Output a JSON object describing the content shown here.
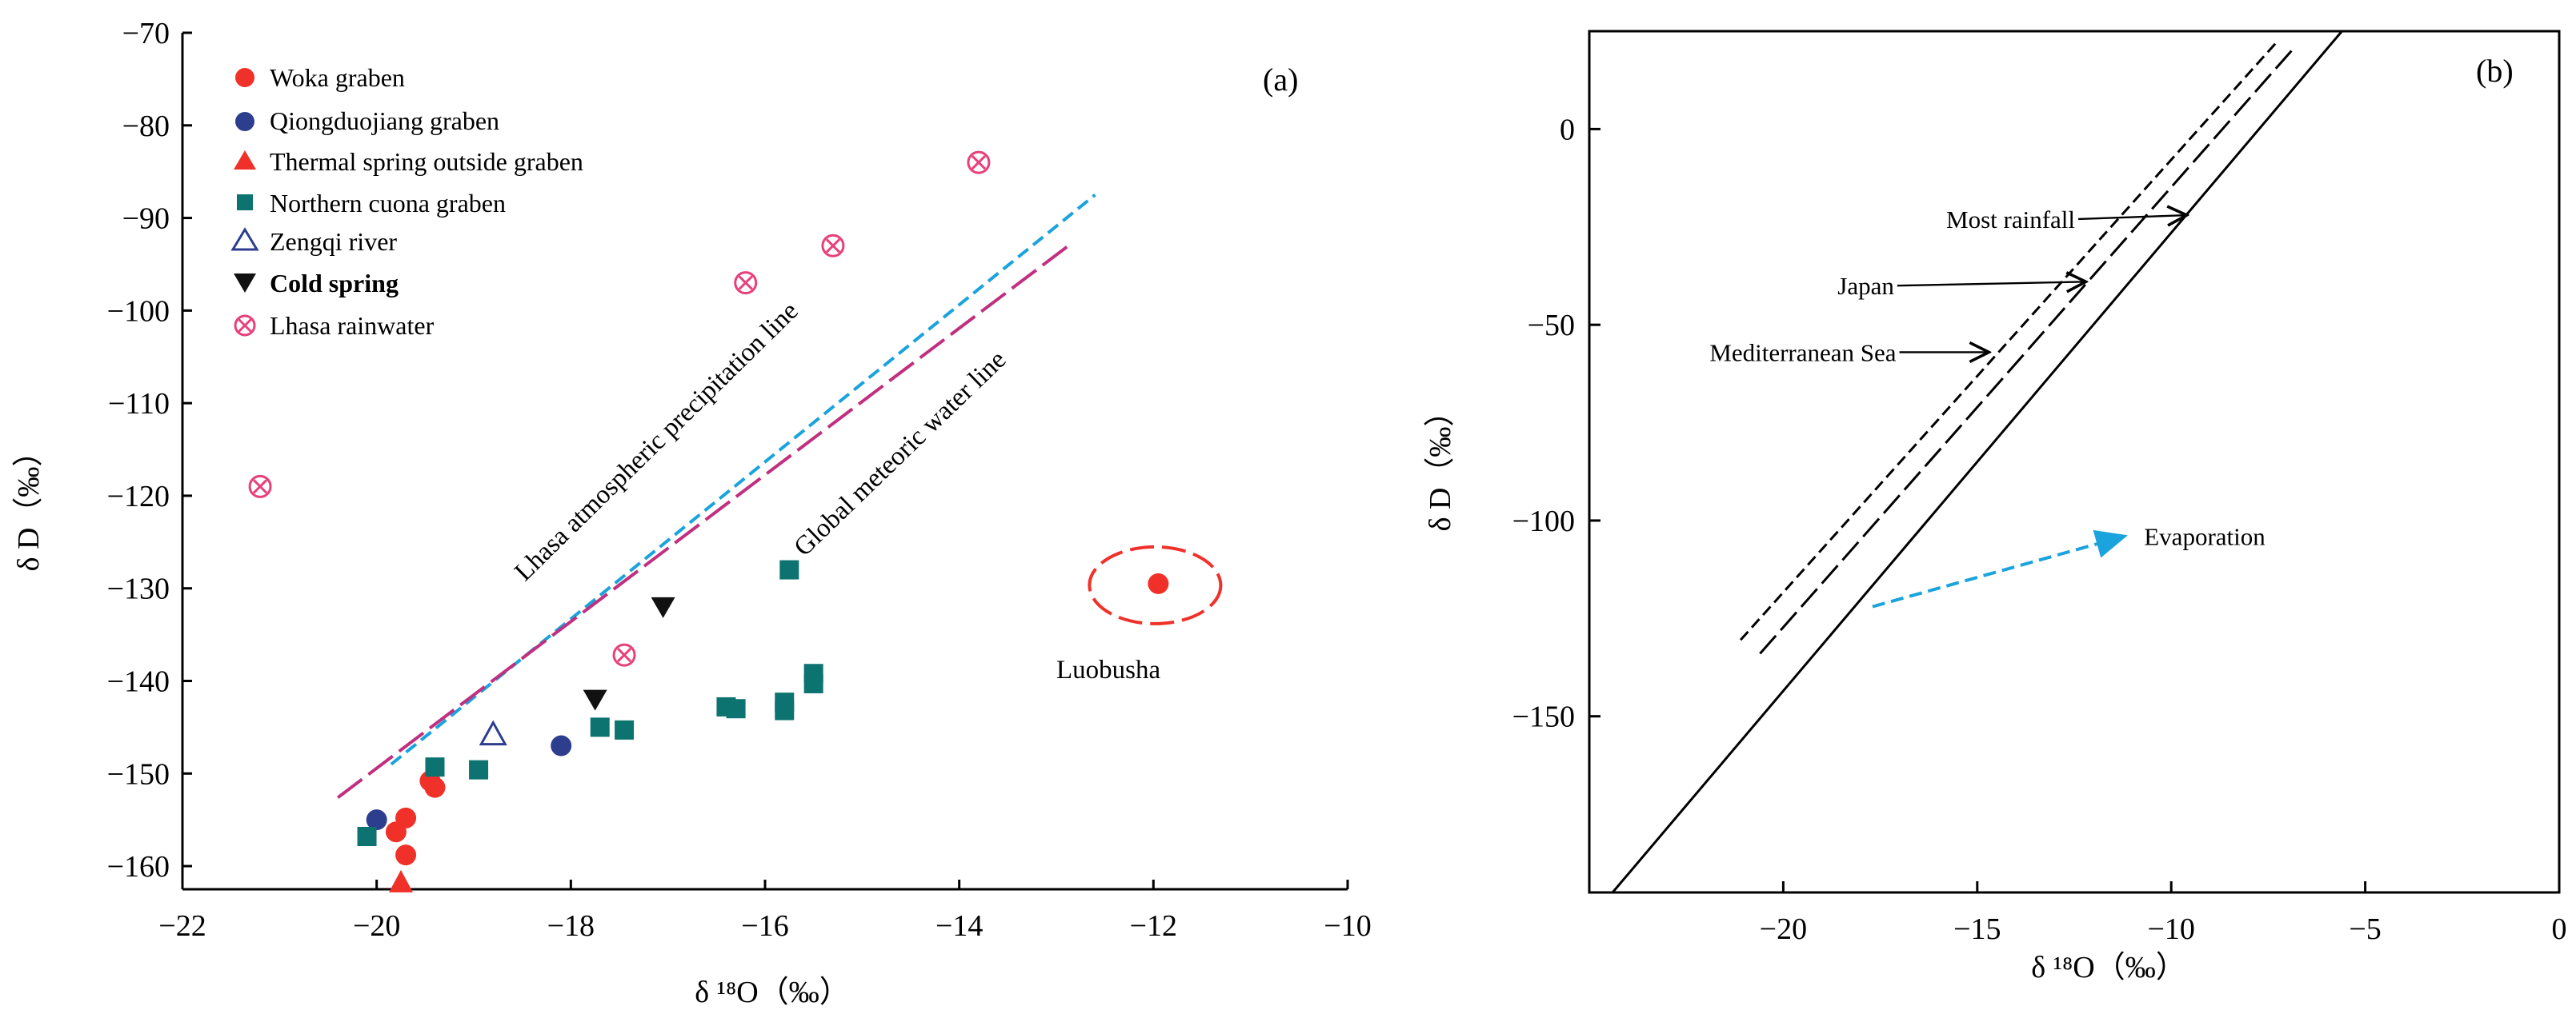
{
  "colors": {
    "woka": "#f0312a",
    "qiong": "#2d3e8f",
    "thermal": "#f0312a",
    "northern": "#0d7370",
    "zengqi": "#2d3e8f",
    "cold": "#111111",
    "lhasa_rain": "#e8407a",
    "lhasa_line": "#1aa3dc",
    "gmwl_line": "#c0307f",
    "luobusha": "#f0312a",
    "evaporation": "#1aa3dc",
    "axis": "#000000"
  },
  "chart_data": [
    {
      "type": "scatter",
      "panel_label": "(a)",
      "xlabel": "δ ¹⁸O（‰）",
      "ylabel": "δ D（‰）",
      "xlim": [
        -22,
        -10
      ],
      "ylim": [
        -162.5,
        -70
      ],
      "xticks": [
        -22,
        -20,
        -18,
        -16,
        -14,
        -12,
        -10
      ],
      "xtick_labels": [
        "−22",
        "−20",
        "−18",
        "−16",
        "−14",
        "−12",
        "−10"
      ],
      "yticks": [
        -160,
        -150,
        -140,
        -130,
        -120,
        -110,
        -100,
        -90,
        -80,
        -70
      ],
      "ytick_labels": [
        "−160",
        "−150",
        "−140",
        "−130",
        "−120",
        "−110",
        "−100",
        "−90",
        "−80",
        "−70"
      ],
      "legend_position": "top-left",
      "series": [
        {
          "name": "Woka graben",
          "marker": "circle",
          "color_key": "woka",
          "points": [
            [
              -19.8,
              -156.3
            ],
            [
              -19.7,
              -154.8
            ],
            [
              -19.7,
              -158.8
            ],
            [
              -19.45,
              -150.8
            ],
            [
              -19.4,
              -151.5
            ]
          ]
        },
        {
          "name": "Qiongduojiang graben",
          "marker": "circle",
          "color_key": "qiong",
          "points": [
            [
              -20,
              -155
            ],
            [
              -18.1,
              -147
            ]
          ]
        },
        {
          "name": "Thermal spring outside graben",
          "marker": "triangle-up",
          "color_key": "thermal",
          "points": [
            [
              -19.75,
              -161.8
            ]
          ]
        },
        {
          "name": "Northern cuona graben",
          "marker": "square",
          "color_key": "northern",
          "points": [
            [
              -20.1,
              -156.8
            ],
            [
              -19.4,
              -149.3
            ],
            [
              -18.95,
              -149.6
            ],
            [
              -17.7,
              -145
            ],
            [
              -17.45,
              -145.3
            ],
            [
              -16.4,
              -142.8
            ],
            [
              -16.3,
              -143
            ],
            [
              -15.8,
              -142.3
            ],
            [
              -15.8,
              -143.2
            ],
            [
              -15.5,
              -139.2
            ],
            [
              -15.5,
              -140.3
            ],
            [
              -15.75,
              -128
            ]
          ]
        },
        {
          "name": "Zengqi river",
          "marker": "triangle-open",
          "color_key": "zengqi",
          "points": [
            [
              -18.8,
              -145.8
            ]
          ]
        },
        {
          "name": "Cold spring",
          "marker": "triangle-down",
          "color_key": "cold",
          "points": [
            [
              -17.75,
              -142
            ],
            [
              -17.05,
              -132
            ]
          ]
        },
        {
          "name": "Lhasa rainwater",
          "marker": "circle-x",
          "color_key": "lhasa_rain",
          "points": [
            [
              -21.2,
              -119
            ],
            [
              -16.2,
              -97
            ],
            [
              -15.3,
              -93
            ],
            [
              -13.8,
              -84
            ],
            [
              -17.45,
              -137.2
            ]
          ]
        }
      ],
      "lines": [
        {
          "name": "Lhasa atmospheric precipitation line",
          "color_key": "lhasa_line",
          "style": "dashed",
          "from": [
            -19.85,
            -149
          ],
          "to": [
            -12.6,
            -87.5
          ]
        },
        {
          "name": "Global meteoric water line",
          "color_key": "gmwl_line",
          "style": "long-dash",
          "from": [
            -20.4,
            -152.6
          ],
          "to": [
            -12.85,
            -92.8
          ]
        }
      ],
      "annotations": [
        {
          "name": "Luobusha",
          "point": [
            -11.95,
            -129.5
          ],
          "color_key": "luobusha"
        }
      ]
    },
    {
      "type": "line",
      "panel_label": "(b)",
      "xlabel": "δ ¹⁸O（‰）",
      "ylabel": "δ D（‰）",
      "xlim": [
        -25,
        0
      ],
      "ylim": [
        -195,
        25
      ],
      "xticks": [
        -20,
        -15,
        -10,
        -5,
        0
      ],
      "xtick_labels": [
        "−20",
        "−15",
        "−10",
        "−5",
        "0"
      ],
      "yticks": [
        0,
        -50,
        -100,
        -150
      ],
      "ytick_labels": [
        "0",
        "−50",
        "−100",
        "−150"
      ],
      "series": [
        {
          "name": "Most rainfall",
          "style": "solid",
          "points": [
            [
              -24.4,
              -195
            ],
            [
              -5.6,
              25
            ]
          ]
        },
        {
          "name": "Japan",
          "style": "long-dash",
          "points": [
            [
              -20.6,
              -134
            ],
            [
              -6.9,
              20
            ]
          ]
        },
        {
          "name": "Mediterranean Sea",
          "style": "short-dash",
          "points": [
            [
              -21.1,
              -130.5
            ],
            [
              -7.3,
              22
            ]
          ]
        }
      ],
      "annotations": [
        {
          "name": "Most rainfall",
          "text_at": [
            -15.8,
            -23
          ],
          "arrow_to": [
            -9.6,
            -22
          ]
        },
        {
          "name": "Japan",
          "text_at": [
            -18.6,
            -40
          ],
          "arrow_to": [
            -12.2,
            -39
          ]
        },
        {
          "name": "Mediterranean Sea",
          "text_at": [
            -21.9,
            -57
          ],
          "arrow_to": [
            -14.7,
            -57
          ]
        },
        {
          "name": "Evaporation",
          "text_at": [
            -10.7,
            -104
          ],
          "arrow_from": [
            -17.7,
            -122
          ],
          "arrow_to": [
            -11.2,
            -104
          ]
        }
      ]
    }
  ]
}
